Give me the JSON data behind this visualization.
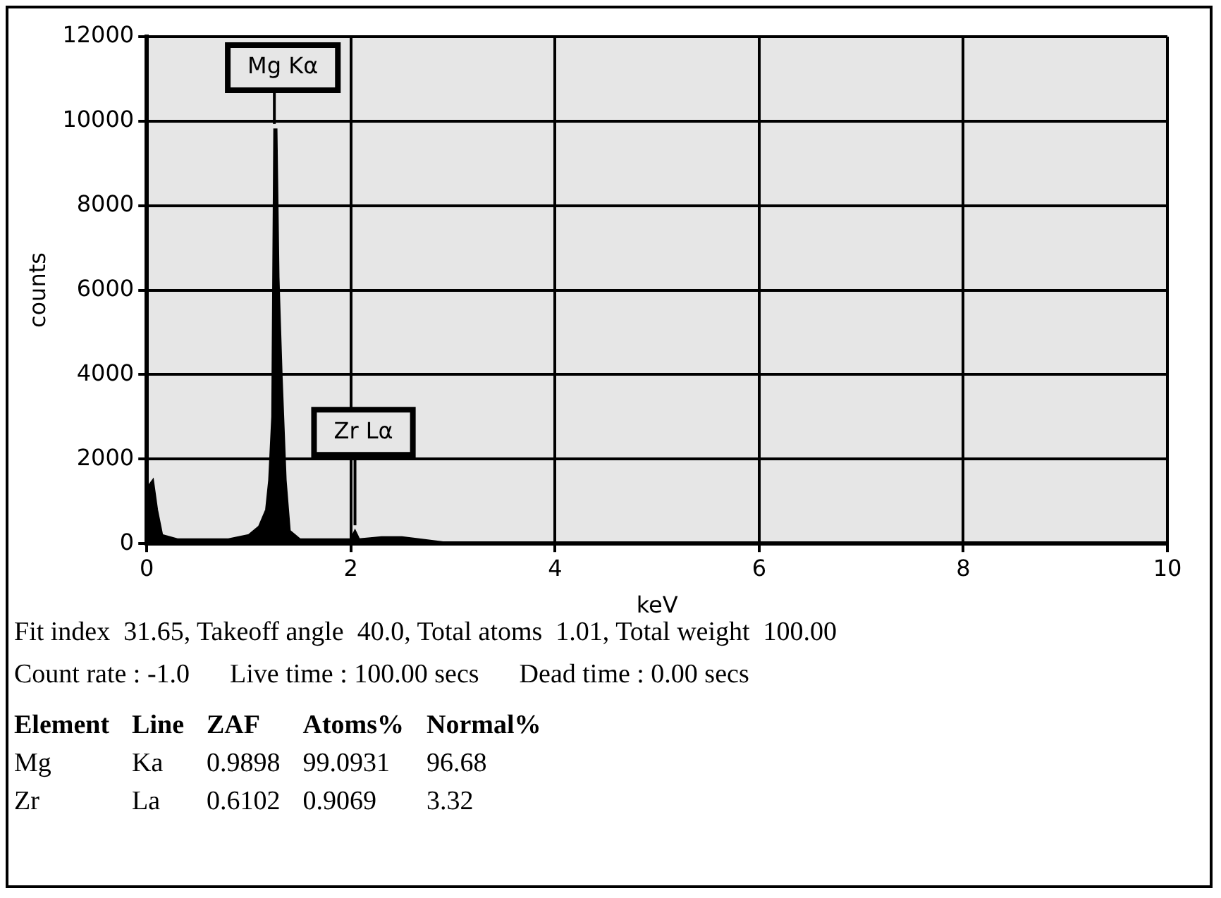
{
  "chart_data": {
    "type": "area",
    "xlabel": "keV",
    "ylabel": "counts",
    "x": [
      0,
      0.03,
      0.06,
      0.1,
      0.15,
      0.3,
      0.8,
      1.0,
      1.1,
      1.17,
      1.2,
      1.23,
      1.25,
      1.27,
      1.29,
      1.32,
      1.36,
      1.4,
      1.5,
      2.0,
      2.04,
      2.08,
      2.3,
      2.5,
      3,
      10
    ],
    "series": [
      {
        "color": "#000000",
        "values": [
          0,
          1400,
          1500,
          800,
          200,
          100,
          100,
          200,
          400,
          800,
          1500,
          3000,
          9800,
          9800,
          6300,
          4000,
          1500,
          300,
          100,
          100,
          300,
          100,
          150,
          150,
          0,
          0
        ]
      }
    ],
    "xlim": [
      0,
      10
    ],
    "xticks": [
      0,
      2,
      4,
      6,
      8,
      10
    ],
    "ylim": [
      0,
      12000
    ],
    "yticks": [
      0,
      2000,
      4000,
      6000,
      8000,
      10000,
      12000
    ],
    "grid": true,
    "marker": "none",
    "annotations": [
      {
        "text": "Mg Kα",
        "x": 1.25,
        "y": 9800
      },
      {
        "text": "Zr Lα",
        "x": 2.04,
        "y": 300
      },
      "Fit index  31.65, Takeoff angle  40.0, Total atoms  1.01, Total weight  100.00",
      "Count rate : -1.0\tLive time : 100.00 secs\tDead time : 0.00 secs",
      "Element\tLine\tZAF\tAtoms%\tNormal%",
      "Mg\tKa\t0.9898\t99.0931\t96.68",
      "Zr\tLa\t0.6102\t0.9069\t3.32"
    ]
  }
}
